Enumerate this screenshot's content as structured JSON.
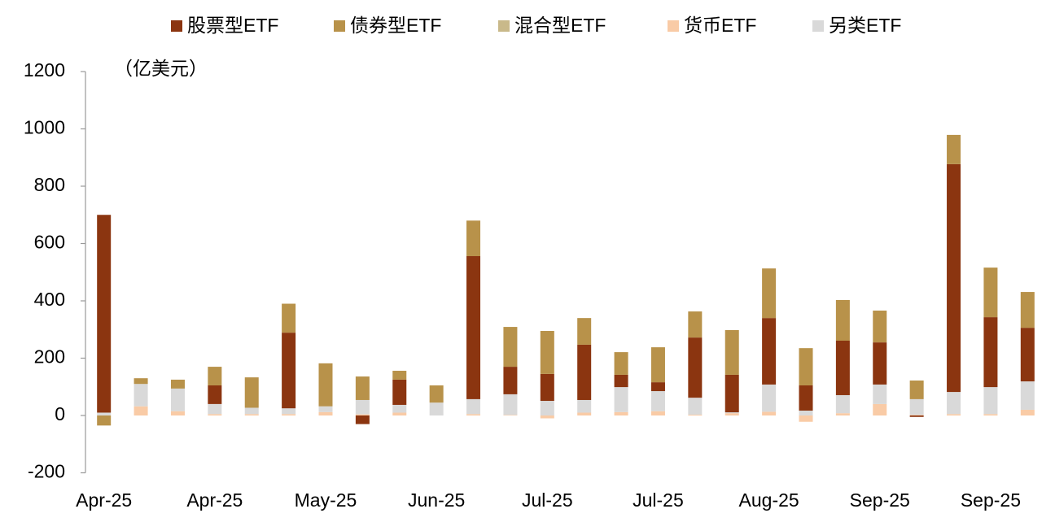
{
  "chart_data": {
    "type": "stacked_bar",
    "unit_label": "（亿美元）",
    "categories": [
      "Apr-25",
      null,
      null,
      "Apr-25",
      null,
      null,
      "May-25",
      null,
      null,
      "Jun-25",
      null,
      null,
      "Jul-25",
      null,
      null,
      "Jul-25",
      null,
      null,
      "Aug-25",
      null,
      null,
      "Sep-25",
      null,
      null,
      "Sep-25",
      null
    ],
    "series": [
      {
        "name": "股票型ETF",
        "color": "#8b3510",
        "values": [
          690,
          0,
          0,
          65,
          0,
          264,
          0,
          -30,
          88,
          0,
          499,
          96,
          94,
          193,
          43,
          31,
          210,
          131,
          232,
          88,
          190,
          147,
          -5,
          795,
          244,
          187
        ]
      },
      {
        "name": "债券型ETF",
        "color": "#b8924a",
        "values": [
          -35,
          20,
          31,
          65,
          106,
          101,
          150,
          82,
          31,
          60,
          124,
          139,
          150,
          93,
          79,
          122,
          91,
          156,
          173,
          130,
          142,
          111,
          65,
          102,
          173,
          125
        ]
      },
      {
        "name": "混合型ETF",
        "color": "#c9b98a",
        "values": [
          0,
          0,
          0,
          0,
          0,
          0,
          0,
          0,
          0,
          0,
          0,
          0,
          0,
          0,
          0,
          0,
          0,
          0,
          0,
          0,
          0,
          0,
          0,
          0,
          0,
          0
        ]
      },
      {
        "name": "货币ETF",
        "color": "#f9cba6",
        "values": [
          0,
          32,
          15,
          5,
          5,
          5,
          12,
          4,
          10,
          0,
          5,
          2,
          -10,
          10,
          12,
          15,
          3,
          8,
          13,
          -22,
          8,
          40,
          2,
          5,
          5,
          20
        ]
      },
      {
        "name": "另类ETF",
        "color": "#d9d9d9",
        "values": [
          10,
          78,
          79,
          35,
          22,
          20,
          20,
          50,
          27,
          45,
          52,
          72,
          51,
          44,
          87,
          70,
          59,
          3,
          95,
          17,
          63,
          68,
          55,
          77,
          94,
          99
        ]
      }
    ],
    "ylim": [
      -200,
      1200
    ],
    "yticks": [
      -200,
      0,
      200,
      400,
      600,
      800,
      1000,
      1200
    ]
  }
}
